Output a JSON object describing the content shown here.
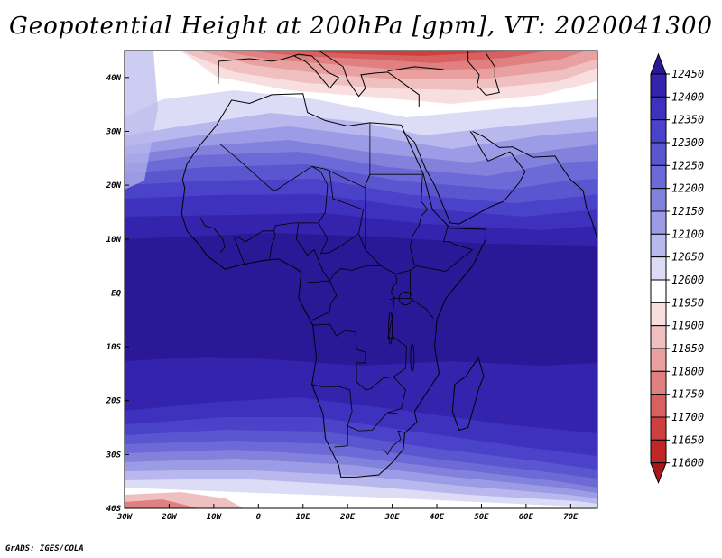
{
  "title": "Geopotential Height at 200hPa [gpm], VT: 2020041300",
  "credit": "GrADS: IGES/COLA",
  "map": {
    "lon_range": [
      -30,
      76
    ],
    "lat_range": [
      -40,
      45
    ],
    "lat_labels": [
      {
        "lat": 40,
        "label": "40N"
      },
      {
        "lat": 30,
        "label": "30N"
      },
      {
        "lat": 20,
        "label": "20N"
      },
      {
        "lat": 10,
        "label": "10N"
      },
      {
        "lat": 0,
        "label": "EQ"
      },
      {
        "lat": -10,
        "label": "10S"
      },
      {
        "lat": -20,
        "label": "20S"
      },
      {
        "lat": -30,
        "label": "30S"
      },
      {
        "lat": -40,
        "label": "40S"
      }
    ],
    "lon_labels": [
      {
        "lon": -30,
        "label": "30W"
      },
      {
        "lon": -20,
        "label": "20W"
      },
      {
        "lon": -10,
        "label": "10W"
      },
      {
        "lon": 0,
        "label": "0"
      },
      {
        "lon": 10,
        "label": "10E"
      },
      {
        "lon": 20,
        "label": "20E"
      },
      {
        "lon": 30,
        "label": "30E"
      },
      {
        "lon": 40,
        "label": "40E"
      },
      {
        "lon": 50,
        "label": "50E"
      },
      {
        "lon": 60,
        "label": "60E"
      },
      {
        "lon": 70,
        "label": "70E"
      }
    ]
  },
  "colorbar": {
    "levels": [
      "12450",
      "12400",
      "12350",
      "12300",
      "12250",
      "12200",
      "12150",
      "12100",
      "12050",
      "12000",
      "11950",
      "11900",
      "11850",
      "11800",
      "11750",
      "11700",
      "11650",
      "11600"
    ],
    "colors": [
      "#2a1896",
      "#3323ad",
      "#3d31bd",
      "#4a42c8",
      "#5a56cf",
      "#6c6ad6",
      "#8282dd",
      "#9c9ce6",
      "#b8b8ee",
      "#dcdcf6",
      "#ffffff",
      "#f8dede",
      "#f0c0c0",
      "#e8a0a0",
      "#e08080",
      "#d86060",
      "#cc4040",
      "#c02828",
      "#a81818"
    ]
  }
}
